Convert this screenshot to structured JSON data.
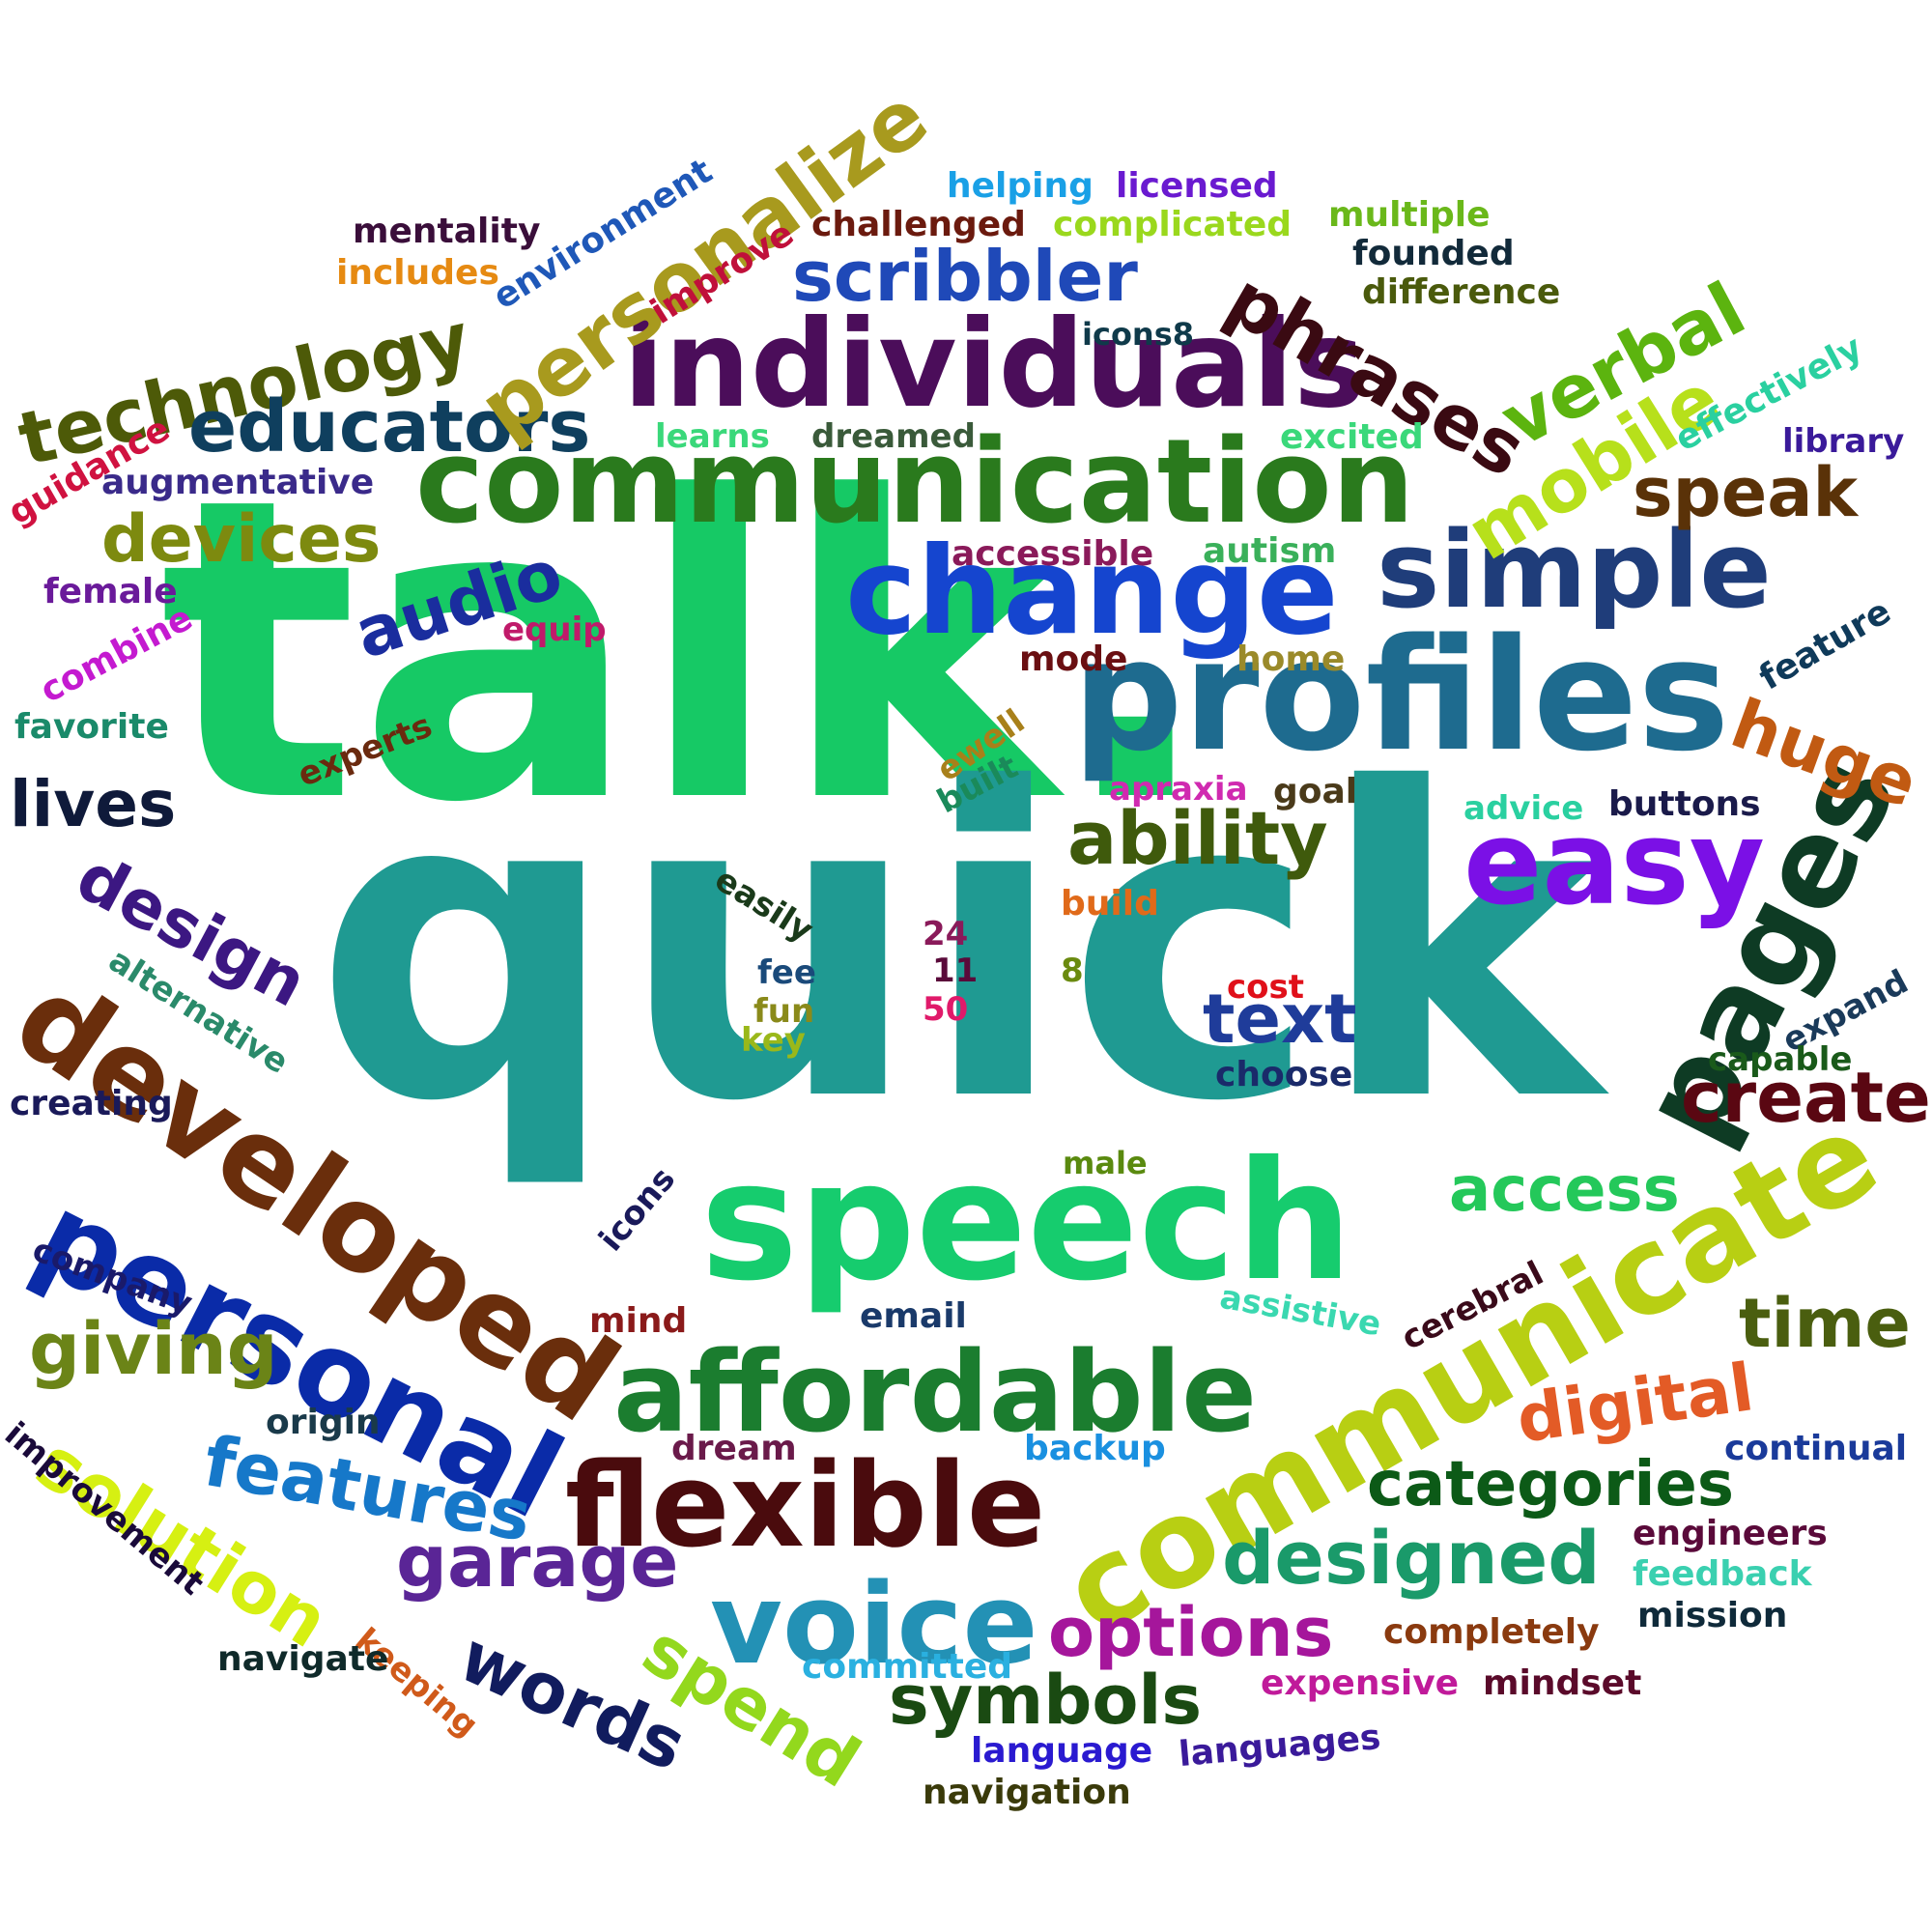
{
  "words": [
    {
      "text": "talk.",
      "color": "#16c965"
    },
    {
      "text": "quick",
      "color": "#1f9a92"
    },
    {
      "text": "speech",
      "color": "#16cc6e"
    },
    {
      "text": "communication",
      "color": "#2a7a1d"
    },
    {
      "text": "individuals",
      "color": "#4b0d5a"
    },
    {
      "text": "profiles",
      "color": "#1e6b8f"
    },
    {
      "text": "change",
      "color": "#1545cf"
    },
    {
      "text": "simple",
      "color": "#1f3d7a"
    },
    {
      "text": "easy",
      "color": "#7b10e6"
    },
    {
      "text": "pages",
      "color": "#0e3b24"
    },
    {
      "text": "communicate",
      "color": "#b8cf13"
    },
    {
      "text": "personal",
      "color": "#0a2ba8"
    },
    {
      "text": "developed",
      "color": "#6a2e0c"
    },
    {
      "text": "affordable",
      "color": "#1b7d2f"
    },
    {
      "text": "flexible",
      "color": "#4a0b0d"
    },
    {
      "text": "voice",
      "color": "#2391b5"
    },
    {
      "text": "technology",
      "color": "#4d5a08"
    },
    {
      "text": "educators",
      "color": "#0f3f5e"
    },
    {
      "text": "personalize",
      "color": "#a89a1e"
    },
    {
      "text": "scribbler",
      "color": "#1f49b8"
    },
    {
      "text": "phrases",
      "color": "#3a0a12"
    },
    {
      "text": "verbal",
      "color": "#5cb40f"
    },
    {
      "text": "mobile",
      "color": "#b7e01b"
    },
    {
      "text": "speak",
      "color": "#5a3208"
    },
    {
      "text": "devices",
      "color": "#7d8a0f"
    },
    {
      "text": "audio",
      "color": "#1a2d9e"
    },
    {
      "text": "ability",
      "color": "#3f5a0c"
    },
    {
      "text": "huge",
      "color": "#c15a12"
    },
    {
      "text": "create",
      "color": "#5a0712"
    },
    {
      "text": "text",
      "color": "#1f3c9a"
    },
    {
      "text": "design",
      "color": "#3c1782"
    },
    {
      "text": "lives",
      "color": "#0f1a3a"
    },
    {
      "text": "giving",
      "color": "#6b8417"
    },
    {
      "text": "solution",
      "color": "#d6f012"
    },
    {
      "text": "features",
      "color": "#1678c9"
    },
    {
      "text": "garage",
      "color": "#5a2596"
    },
    {
      "text": "words",
      "color": "#111c5e"
    },
    {
      "text": "spend",
      "color": "#93d81d"
    },
    {
      "text": "options",
      "color": "#a5169b"
    },
    {
      "text": "symbols",
      "color": "#1a4a12"
    },
    {
      "text": "designed",
      "color": "#1a9a6a"
    },
    {
      "text": "categories",
      "color": "#0c5a17"
    },
    {
      "text": "digital",
      "color": "#e35b26"
    },
    {
      "text": "access",
      "color": "#24c85a"
    },
    {
      "text": "time",
      "color": "#4a5e0f"
    },
    {
      "text": "mentality",
      "color": "#3a0e3a"
    },
    {
      "text": "includes",
      "color": "#e68a12"
    },
    {
      "text": "environment",
      "color": "#1f58b8"
    },
    {
      "text": "improve",
      "color": "#c0103a"
    },
    {
      "text": "challenged",
      "color": "#6b1a0e"
    },
    {
      "text": "helping",
      "color": "#1aa0e6"
    },
    {
      "text": "licensed",
      "color": "#6a1ad0"
    },
    {
      "text": "complicated",
      "color": "#9ad81d"
    },
    {
      "text": "multiple",
      "color": "#6ab81a"
    },
    {
      "text": "founded",
      "color": "#122a3a"
    },
    {
      "text": "difference",
      "color": "#4a5a0c"
    },
    {
      "text": "icons8",
      "color": "#0f3a4a"
    },
    {
      "text": "effectively",
      "color": "#2ad0a0"
    },
    {
      "text": "library",
      "color": "#3a1a9a"
    },
    {
      "text": "guidance",
      "color": "#d01240"
    },
    {
      "text": "augmentative",
      "color": "#3a2a8a"
    },
    {
      "text": "learns",
      "color": "#3ad87a"
    },
    {
      "text": "dreamed",
      "color": "#3a5a3a"
    },
    {
      "text": "excited",
      "color": "#3ad87a"
    },
    {
      "text": "accessible",
      "color": "#8a1a5a"
    },
    {
      "text": "autism",
      "color": "#3ab05a"
    },
    {
      "text": "female",
      "color": "#6a1a9a"
    },
    {
      "text": "combine",
      "color": "#c41ad0"
    },
    {
      "text": "equip",
      "color": "#c01a6a"
    },
    {
      "text": "mode",
      "color": "#6a0f12"
    },
    {
      "text": "home",
      "color": "#9a8a2a"
    },
    {
      "text": "feature",
      "color": "#0f3a5a"
    },
    {
      "text": "favorite",
      "color": "#1a8a6a"
    },
    {
      "text": "experts",
      "color": "#6a2a0f"
    },
    {
      "text": "ewell",
      "color": "#a8801a"
    },
    {
      "text": "built",
      "color": "#1a8a5a"
    },
    {
      "text": "apraxia",
      "color": "#d02ab0"
    },
    {
      "text": "goal",
      "color": "#4a3a1a"
    },
    {
      "text": "advice",
      "color": "#2ad0a0"
    },
    {
      "text": "buttons",
      "color": "#1a1a4a"
    },
    {
      "text": "easily",
      "color": "#1a3a1a"
    },
    {
      "text": "build",
      "color": "#e06a1a"
    },
    {
      "text": "24",
      "color": "#8a1a5a"
    },
    {
      "text": "11",
      "color": "#5a0a3a"
    },
    {
      "text": "50",
      "color": "#e01a6a"
    },
    {
      "text": "8",
      "color": "#6a8a0f"
    },
    {
      "text": "fee",
      "color": "#1a4a7a"
    },
    {
      "text": "fun",
      "color": "#8a8a1a"
    },
    {
      "text": "key",
      "color": "#9ab81a"
    },
    {
      "text": "cost",
      "color": "#e0101a"
    },
    {
      "text": "choose",
      "color": "#1a2a6a"
    },
    {
      "text": "alternative",
      "color": "#2a8a6a"
    },
    {
      "text": "expand",
      "color": "#1a3a5a"
    },
    {
      "text": "capable",
      "color": "#1a5a1a"
    },
    {
      "text": "creating",
      "color": "#1a1a5a"
    },
    {
      "text": "male",
      "color": "#5a8a0f"
    },
    {
      "text": "icons",
      "color": "#1a1a5a"
    },
    {
      "text": "company",
      "color": "#1a1a6a"
    },
    {
      "text": "mind",
      "color": "#8a1a1a"
    },
    {
      "text": "email",
      "color": "#1a3a6a"
    },
    {
      "text": "assistive",
      "color": "#3ad8b0"
    },
    {
      "text": "cerebral",
      "color": "#3a0a1a"
    },
    {
      "text": "origin",
      "color": "#1a3a4a"
    },
    {
      "text": "dream",
      "color": "#6a1a4a"
    },
    {
      "text": "backup",
      "color": "#1a90e0"
    },
    {
      "text": "continual",
      "color": "#1a3a9a"
    },
    {
      "text": "improvement",
      "color": "#1a0a3a"
    },
    {
      "text": "keeping",
      "color": "#d05a1a"
    },
    {
      "text": "navigate",
      "color": "#0f2a2a"
    },
    {
      "text": "engineers",
      "color": "#5a0a3a"
    },
    {
      "text": "feedback",
      "color": "#3ad0b0"
    },
    {
      "text": "mission",
      "color": "#0f2a3a"
    },
    {
      "text": "completely",
      "color": "#8a3a0f"
    },
    {
      "text": "committed",
      "color": "#2ab0e0"
    },
    {
      "text": "expensive",
      "color": "#c01a9a"
    },
    {
      "text": "mindset",
      "color": "#5a0a2a"
    },
    {
      "text": "language",
      "color": "#2a1ad0"
    },
    {
      "text": "languages",
      "color": "#3a1a9a"
    },
    {
      "text": "navigation",
      "color": "#3a3a0a"
    }
  ]
}
